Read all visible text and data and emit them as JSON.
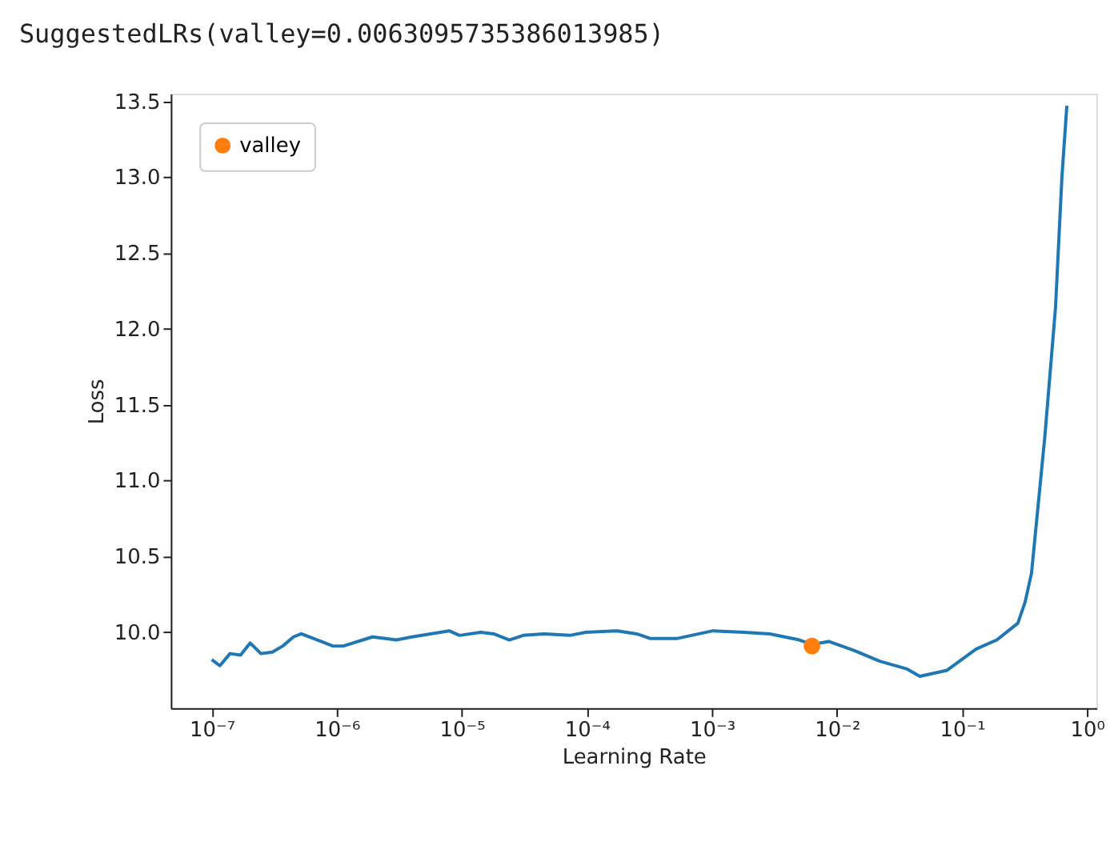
{
  "chart_data": {
    "type": "line",
    "title": "SuggestedLRs(valley=0.0063095735386013985)",
    "xlabel": "Learning Rate",
    "ylabel": "Loss",
    "log": "x",
    "xlim": [
      4.7e-08,
      1.19
    ],
    "ylim": [
      9.5,
      13.55
    ],
    "xticks": [
      {
        "value": 1e-07,
        "label": "10⁻⁷"
      },
      {
        "value": 1e-06,
        "label": "10⁻⁶"
      },
      {
        "value": 1e-05,
        "label": "10⁻⁵"
      },
      {
        "value": 0.0001,
        "label": "10⁻⁴"
      },
      {
        "value": 0.001,
        "label": "10⁻³"
      },
      {
        "value": 0.01,
        "label": "10⁻²"
      },
      {
        "value": 0.1,
        "label": "10⁻¹"
      },
      {
        "value": 1,
        "label": "10⁰"
      }
    ],
    "yticks": [
      {
        "value": 10,
        "label": "10.0"
      },
      10.5,
      {
        "value": 11,
        "label": "11.0"
      },
      11.5,
      {
        "value": 12,
        "label": "12.0"
      },
      12.5,
      {
        "value": 13,
        "label": "13.0"
      },
      13.5
    ],
    "grid": false,
    "legend": "top left",
    "series": [
      {
        "color": "#1f77b4",
        "line_style": "solid",
        "x": [
          1e-07,
          1.16e-07,
          1.4e-07,
          1.7e-07,
          2.03e-07,
          2.47e-07,
          3.05e-07,
          3.7e-07,
          4.5e-07,
          5.2e-07,
          7e-07,
          9.3e-07,
          1.13e-06,
          1.93e-06,
          3e-06,
          4e-06,
          7.9e-06,
          9.6e-06,
          1.42e-05,
          1.8e-05,
          2.4e-05,
          3.1e-05,
          4.57e-05,
          7.3e-05,
          9.8e-05,
          0.000175,
          0.00025,
          0.00032,
          0.00053,
          0.00102,
          0.0018,
          0.0029,
          0.005,
          0.0063,
          0.0086,
          0.0138,
          0.022,
          0.036,
          0.046,
          0.076,
          0.13,
          0.19,
          0.28,
          0.32,
          0.36,
          0.46,
          0.56,
          0.63,
          0.69
        ],
        "values": [
          9.82,
          9.78,
          9.86,
          9.85,
          9.93,
          9.86,
          9.87,
          9.91,
          9.97,
          9.99,
          9.95,
          9.91,
          9.91,
          9.97,
          9.95,
          9.97,
          10.01,
          9.98,
          10.0,
          9.99,
          9.95,
          9.98,
          9.99,
          9.98,
          10.0,
          10.01,
          9.99,
          9.96,
          9.96,
          10.01,
          10.0,
          9.99,
          9.95,
          9.92,
          9.94,
          9.88,
          9.81,
          9.76,
          9.71,
          9.75,
          9.89,
          9.95,
          10.06,
          10.2,
          10.39,
          11.29,
          12.14,
          13.0,
          13.47
        ]
      },
      {
        "type": "scatter",
        "name": "valley",
        "color": "#ff7f0e",
        "marker": "circle",
        "x": [
          0.0063095735386013985
        ],
        "values": [
          9.91
        ]
      }
    ]
  }
}
